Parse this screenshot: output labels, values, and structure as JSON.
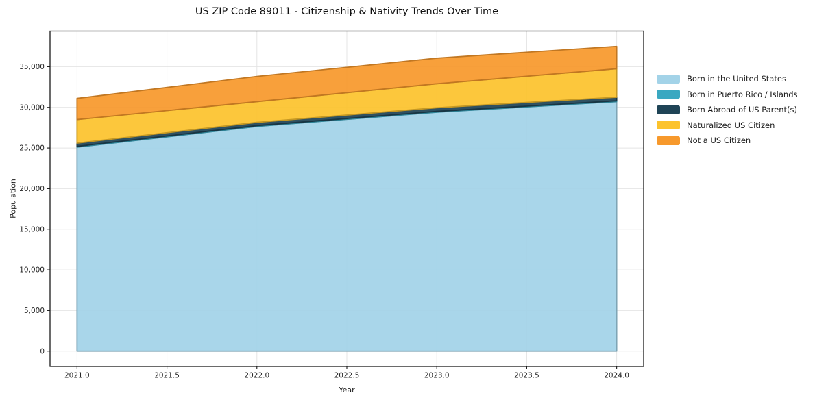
{
  "chart_data": {
    "type": "area",
    "stacked": true,
    "title": "US ZIP Code 89011 - Citizenship & Nativity Trends Over Time",
    "xlabel": "Year",
    "ylabel": "Population",
    "x": [
      2021,
      2022,
      2023,
      2024
    ],
    "xlim": [
      2020.85,
      2024.15
    ],
    "ylim": [
      -1875,
      39375
    ],
    "grid": true,
    "legend_position": "outside-right",
    "xticks": {
      "values": [
        2021.0,
        2021.5,
        2022.0,
        2022.5,
        2023.0,
        2023.5,
        2024.0
      ],
      "labels": [
        "2021.0",
        "2021.5",
        "2022.0",
        "2022.5",
        "2023.0",
        "2023.5",
        "2024.0"
      ]
    },
    "yticks": {
      "values": [
        0,
        5000,
        10000,
        15000,
        20000,
        25000,
        30000,
        35000
      ],
      "labels": [
        "0",
        "5,000",
        "10,000",
        "15,000",
        "20,000",
        "25,000",
        "30,000",
        "35,000"
      ]
    },
    "series": [
      {
        "name": "Born in the United States",
        "color": "#A3D3E8",
        "values": [
          25100,
          27650,
          29400,
          30700
        ]
      },
      {
        "name": "Born in Puerto Rico / Islands",
        "color": "#3AA8C1",
        "values": [
          100,
          100,
          100,
          100
        ]
      },
      {
        "name": "Born Abroad of US Parent(s)",
        "color": "#1F4456",
        "values": [
          400,
          400,
          450,
          450
        ]
      },
      {
        "name": "Naturalized US Citizen",
        "color": "#FCC32D",
        "values": [
          2900,
          2550,
          2950,
          3500
        ]
      },
      {
        "name": "Not a US Citizen",
        "color": "#F7992C",
        "values": [
          2600,
          3100,
          3150,
          2750
        ]
      }
    ],
    "totals": [
      31100,
      33800,
      36050,
      37500
    ]
  }
}
